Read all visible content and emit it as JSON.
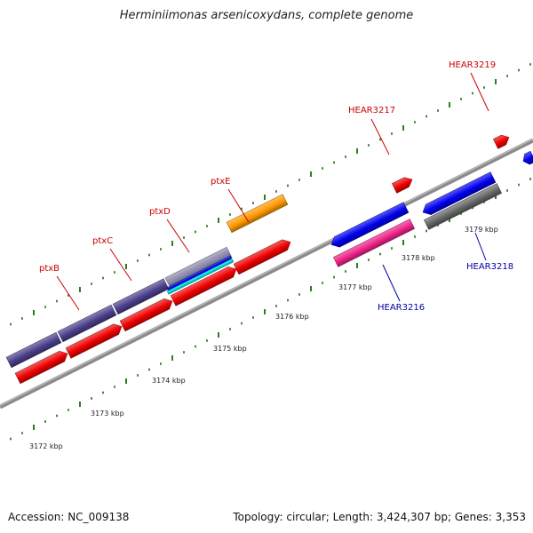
{
  "title": "Herminiimonas arsenicoxydans, complete genome",
  "footer": {
    "accession": "Accession: NC_009138",
    "summary": "Topology: circular; Length: 3,424,307 bp; Genes: 3,353"
  },
  "colors": {
    "backbone": "#8a8a8a",
    "tick": "#2e7d1e",
    "label_red": "#cc0000",
    "label_blue": "#0000aa",
    "cds_red": "#ee0000",
    "slate": "#4a3f8c",
    "orange": "#ff9900",
    "blue": "#0000ee",
    "pink": "#ee2288",
    "gray": "#666666",
    "cyan": "#00dddd"
  },
  "scale_labels": [
    "3172 kbp",
    "3173 kbp",
    "3174 kbp",
    "3175 kbp",
    "3176 kbp",
    "3177 kbp",
    "3178 kbp",
    "3179 kbp"
  ],
  "gene_labels": [
    {
      "id": "ptxB",
      "text": "ptxB",
      "color": "red"
    },
    {
      "id": "ptxC",
      "text": "ptxC",
      "color": "red"
    },
    {
      "id": "ptxD",
      "text": "ptxD",
      "color": "red"
    },
    {
      "id": "ptxE",
      "text": "ptxE",
      "color": "red"
    },
    {
      "id": "HEAR3217",
      "text": "HEAR3217",
      "color": "red"
    },
    {
      "id": "HEAR3219",
      "text": "HEAR3219",
      "color": "red"
    },
    {
      "id": "HEAR3216",
      "text": "HEAR3216",
      "color": "blue"
    },
    {
      "id": "HEAR3218",
      "text": "HEAR3218",
      "color": "blue"
    }
  ]
}
